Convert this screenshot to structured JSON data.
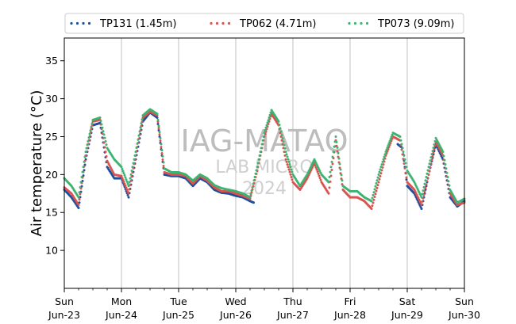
{
  "chart_data": {
    "type": "scatter",
    "title": "",
    "xlabel": "",
    "ylabel": "Air temperature (°C)",
    "xlim": [
      "2024-06-23 00:00",
      "2024-06-30 00:00"
    ],
    "ylim": [
      5,
      38
    ],
    "yticks": [
      10,
      15,
      20,
      25,
      30,
      35
    ],
    "xticks": [
      {
        "date": "2024-06-23",
        "day": "Sun",
        "date_label": "Jun-23"
      },
      {
        "date": "2024-06-24",
        "day": "Mon",
        "date_label": "Jun-24"
      },
      {
        "date": "2024-06-25",
        "day": "Tue",
        "date_label": "Jun-25"
      },
      {
        "date": "2024-06-26",
        "day": "Wed",
        "date_label": "Jun-26"
      },
      {
        "date": "2024-06-27",
        "day": "Thu",
        "date_label": "Jun-27"
      },
      {
        "date": "2024-06-28",
        "day": "Fri",
        "date_label": "Jun-28"
      },
      {
        "date": "2024-06-29",
        "day": "Sat",
        "date_label": "Jun-29"
      },
      {
        "date": "2024-06-30",
        "day": "Sun",
        "date_label": "Jun-30"
      }
    ],
    "grid": "vertical",
    "legend_position": "top",
    "watermark": [
      "IAG-MATAO",
      "LAB MICRO",
      "2024"
    ],
    "series": [
      {
        "name": "TP131 (1.45m)",
        "color": "#1f4e9c",
        "x": [
          "2024-06-23 00:00",
          "2024-06-23 03:00",
          "2024-06-23 06:00",
          "2024-06-23 09:00",
          "2024-06-23 12:00",
          "2024-06-23 15:00",
          "2024-06-23 18:00",
          "2024-06-23 21:00",
          "2024-06-24 00:00",
          "2024-06-24 03:00",
          "2024-06-24 06:00",
          "2024-06-24 09:00",
          "2024-06-24 12:00",
          "2024-06-24 15:00",
          "2024-06-24 18:00",
          "2024-06-24 21:00",
          "2024-06-25 00:00",
          "2024-06-25 03:00",
          "2024-06-25 06:00",
          "2024-06-25 09:00",
          "2024-06-25 12:00",
          "2024-06-25 15:00",
          "2024-06-25 18:00",
          "2024-06-25 21:00",
          "2024-06-26 00:00",
          "2024-06-26 03:00",
          "2024-06-26 06:00",
          "2024-06-26 07:30",
          "2024-06-28 20:00",
          "2024-06-28 22:00",
          "2024-06-29 00:00",
          "2024-06-29 03:00",
          "2024-06-29 06:00",
          "2024-06-29 09:00",
          "2024-06-29 12:00",
          "2024-06-29 15:00",
          "2024-06-29 18:00",
          "2024-06-29 21:00",
          "2024-06-30 00:00"
        ],
        "y": [
          18.0,
          17.0,
          15.6,
          22.0,
          26.5,
          26.8,
          21.0,
          19.5,
          19.5,
          17.0,
          22.0,
          27.0,
          28.2,
          27.5,
          20.0,
          19.8,
          19.8,
          19.5,
          18.5,
          19.5,
          19.0,
          18.0,
          17.6,
          17.5,
          17.2,
          17.0,
          16.5,
          16.3,
          24.0,
          23.5,
          18.5,
          17.5,
          15.5,
          20.0,
          24.0,
          22.0,
          17.0,
          15.8,
          16.5
        ]
      },
      {
        "name": "TP062 (4.71m)",
        "color": "#d9534f",
        "x": [
          "2024-06-23 00:00",
          "2024-06-23 03:00",
          "2024-06-23 06:00",
          "2024-06-23 09:00",
          "2024-06-23 12:00",
          "2024-06-23 15:00",
          "2024-06-23 18:00",
          "2024-06-23 21:00",
          "2024-06-24 00:00",
          "2024-06-24 03:00",
          "2024-06-24 06:00",
          "2024-06-24 09:00",
          "2024-06-24 12:00",
          "2024-06-24 15:00",
          "2024-06-24 18:00",
          "2024-06-24 21:00",
          "2024-06-25 00:00",
          "2024-06-25 03:00",
          "2024-06-25 06:00",
          "2024-06-25 09:00",
          "2024-06-25 12:00",
          "2024-06-25 15:00",
          "2024-06-25 18:00",
          "2024-06-25 21:00",
          "2024-06-26 00:00",
          "2024-06-26 03:00",
          "2024-06-26 06:00",
          "2024-06-26 09:00",
          "2024-06-26 12:00",
          "2024-06-26 15:00",
          "2024-06-26 18:00",
          "2024-06-26 21:00",
          "2024-06-27 00:00",
          "2024-06-27 03:00",
          "2024-06-27 06:00",
          "2024-06-27 09:00",
          "2024-06-27 12:00",
          "2024-06-27 15:00",
          "2024-06-27 18:00",
          "2024-06-27 21:00",
          "2024-06-28 00:00",
          "2024-06-28 03:00",
          "2024-06-28 06:00",
          "2024-06-28 09:00",
          "2024-06-28 12:00",
          "2024-06-28 15:00",
          "2024-06-28 18:00",
          "2024-06-28 21:00",
          "2024-06-29 00:00",
          "2024-06-29 03:00",
          "2024-06-29 06:00",
          "2024-06-29 09:00",
          "2024-06-29 12:00",
          "2024-06-29 15:00",
          "2024-06-29 18:00",
          "2024-06-29 21:00",
          "2024-06-30 00:00"
        ],
        "y": [
          18.3,
          17.5,
          16.0,
          22.5,
          27.0,
          27.2,
          21.8,
          20.0,
          19.8,
          17.5,
          22.5,
          27.5,
          28.3,
          27.8,
          20.3,
          20.0,
          20.0,
          19.8,
          18.8,
          19.8,
          19.2,
          18.3,
          17.8,
          17.8,
          17.5,
          17.2,
          16.8,
          20.5,
          25.0,
          28.0,
          26.5,
          22.0,
          19.0,
          18.0,
          19.5,
          21.5,
          19.0,
          17.5,
          24.5,
          18.0,
          17.0,
          17.0,
          16.5,
          15.5,
          19.0,
          22.5,
          25.0,
          24.5,
          19.0,
          18.0,
          16.0,
          20.0,
          24.3,
          22.5,
          17.5,
          16.0,
          16.3
        ]
      },
      {
        "name": "TP073 (9.09m)",
        "color": "#3cb371",
        "x": [
          "2024-06-23 00:00",
          "2024-06-23 03:00",
          "2024-06-23 06:00",
          "2024-06-23 09:00",
          "2024-06-23 12:00",
          "2024-06-23 15:00",
          "2024-06-23 18:00",
          "2024-06-23 21:00",
          "2024-06-24 00:00",
          "2024-06-24 03:00",
          "2024-06-24 06:00",
          "2024-06-24 09:00",
          "2024-06-24 12:00",
          "2024-06-24 15:00",
          "2024-06-24 18:00",
          "2024-06-24 21:00",
          "2024-06-25 00:00",
          "2024-06-25 03:00",
          "2024-06-25 06:00",
          "2024-06-25 09:00",
          "2024-06-25 12:00",
          "2024-06-25 15:00",
          "2024-06-25 18:00",
          "2024-06-25 21:00",
          "2024-06-26 00:00",
          "2024-06-26 03:00",
          "2024-06-26 06:00",
          "2024-06-26 09:00",
          "2024-06-26 12:00",
          "2024-06-26 15:00",
          "2024-06-26 18:00",
          "2024-06-26 21:00",
          "2024-06-27 00:00",
          "2024-06-27 03:00",
          "2024-06-27 06:00",
          "2024-06-27 09:00",
          "2024-06-27 12:00",
          "2024-06-27 15:00",
          "2024-06-27 18:00",
          "2024-06-27 21:00",
          "2024-06-28 00:00",
          "2024-06-28 03:00",
          "2024-06-28 06:00",
          "2024-06-28 09:00",
          "2024-06-28 12:00",
          "2024-06-28 15:00",
          "2024-06-28 18:00",
          "2024-06-28 21:00",
          "2024-06-29 00:00",
          "2024-06-29 03:00",
          "2024-06-29 06:00",
          "2024-06-29 09:00",
          "2024-06-29 12:00",
          "2024-06-29 15:00",
          "2024-06-29 18:00",
          "2024-06-29 21:00",
          "2024-06-30 00:00"
        ],
        "y": [
          19.5,
          18.5,
          17.0,
          23.0,
          27.2,
          27.5,
          23.5,
          22.0,
          21.0,
          18.5,
          23.0,
          27.8,
          28.6,
          28.0,
          20.8,
          20.3,
          20.3,
          20.0,
          19.2,
          20.0,
          19.5,
          18.6,
          18.2,
          18.0,
          17.8,
          17.5,
          17.0,
          21.0,
          25.5,
          28.5,
          27.0,
          23.0,
          20.0,
          18.5,
          20.0,
          22.0,
          20.0,
          19.0,
          25.0,
          18.5,
          17.8,
          17.8,
          17.0,
          16.5,
          20.0,
          23.0,
          25.5,
          25.0,
          20.5,
          19.0,
          17.0,
          21.0,
          24.8,
          23.0,
          18.0,
          16.3,
          16.8
        ]
      }
    ]
  }
}
